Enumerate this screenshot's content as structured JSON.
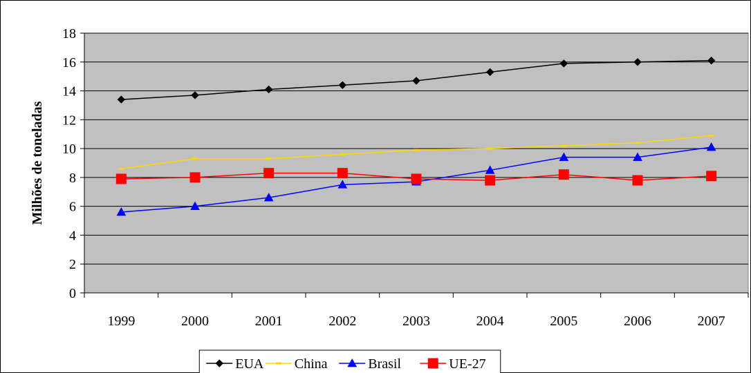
{
  "chart_data": {
    "type": "line",
    "title": "",
    "xlabel": "",
    "ylabel": "Milhões de toneladas",
    "ylim": [
      0,
      18
    ],
    "yticks": [
      0,
      2,
      4,
      6,
      8,
      10,
      12,
      14,
      16,
      18
    ],
    "categories": [
      "1999",
      "2000",
      "2001",
      "2002",
      "2003",
      "2004",
      "2005",
      "2006",
      "2007"
    ],
    "grid": "horizontal",
    "legend_position": "bottom",
    "series": [
      {
        "name": "EUA",
        "color": "#000000",
        "marker": "diamond",
        "values": [
          13.4,
          13.7,
          14.1,
          14.4,
          14.7,
          15.3,
          15.9,
          16.0,
          16.1
        ]
      },
      {
        "name": "China",
        "color": "#FFD700",
        "marker": "dash",
        "values": [
          8.6,
          9.3,
          9.3,
          9.6,
          9.9,
          10.0,
          10.2,
          10.4,
          10.9
        ]
      },
      {
        "name": "Brasil",
        "color": "#0000FF",
        "marker": "triangle",
        "values": [
          5.6,
          6.0,
          6.6,
          7.5,
          7.7,
          8.5,
          9.4,
          9.4,
          10.1
        ]
      },
      {
        "name": "UE-27",
        "color": "#FF0000",
        "marker": "square",
        "values": [
          7.9,
          8.0,
          8.3,
          8.3,
          7.9,
          7.8,
          8.2,
          7.8,
          8.1
        ]
      }
    ],
    "plot_background": "#C0C0C0"
  }
}
